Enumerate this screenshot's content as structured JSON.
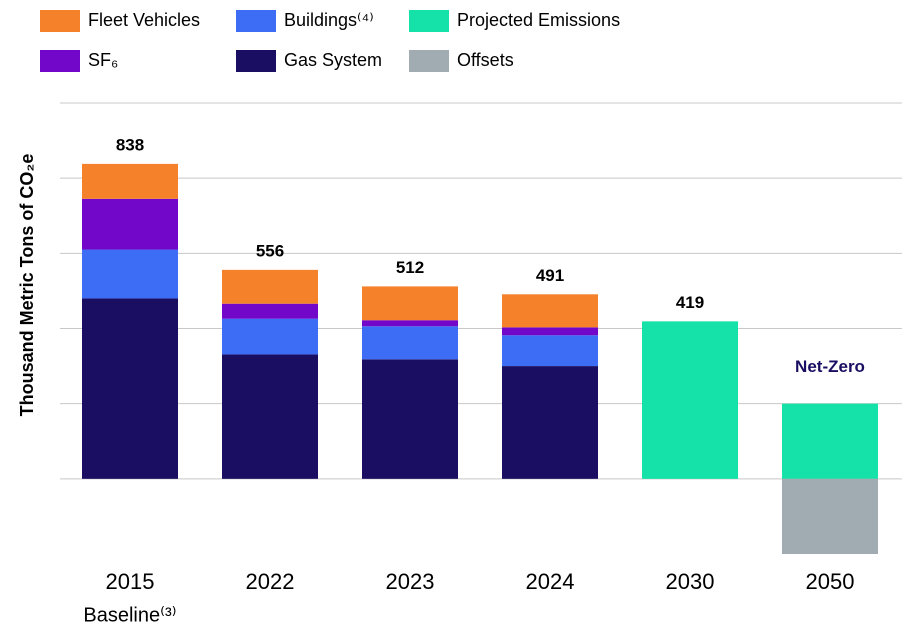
{
  "chart_data": {
    "type": "stacked_bar",
    "y_label": "Thousand Metric Tons of CO₂e",
    "categories": [
      "2015",
      "2022",
      "2023",
      "2024",
      "2030",
      "2050"
    ],
    "baseline_label": "Baseline⁽³⁾",
    "series": [
      {
        "name": "Gas System",
        "color": "#1a0e63",
        "values": [
          480,
          331,
          318,
          300,
          null,
          null
        ]
      },
      {
        "name": "Buildings⁽⁴⁾",
        "color": "#3d6cf5",
        "values": [
          130,
          95,
          88,
          82,
          null,
          null
        ]
      },
      {
        "name": "SF₆",
        "color": "#7206c9",
        "values": [
          135,
          40,
          16,
          21,
          null,
          null
        ]
      },
      {
        "name": "Fleet Vehicles",
        "color": "#f5822a",
        "values": [
          93,
          90,
          90,
          88,
          null,
          null
        ]
      },
      {
        "name": "Projected Emissions",
        "color": "#14e2a8",
        "values": [
          null,
          null,
          null,
          null,
          419,
          200
        ]
      },
      {
        "name": "Offsets",
        "color": "#a0abb2",
        "values": [
          null,
          null,
          null,
          null,
          null,
          -200
        ]
      }
    ],
    "totals": [
      838,
      556,
      512,
      491,
      419,
      null
    ],
    "annotation": "Net-Zero",
    "annotation_color": "#1a0e63",
    "ylim": [
      -200,
      1000
    ],
    "yticks": [
      0,
      200,
      400,
      600,
      800,
      1000
    ],
    "grid": true
  }
}
